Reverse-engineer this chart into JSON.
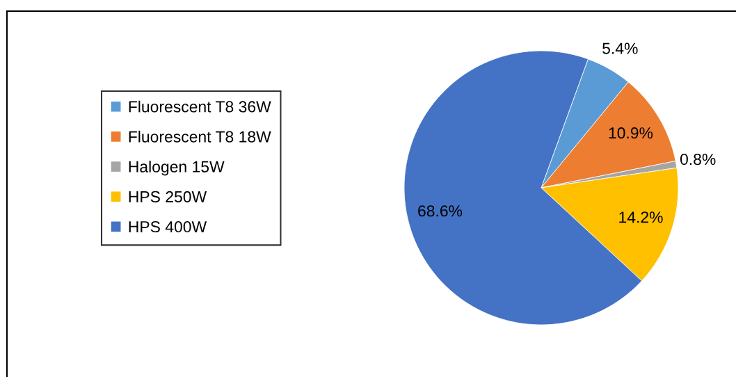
{
  "chart_data": {
    "type": "pie",
    "categories": [
      "Fluorescent T8 36W",
      "Fluorescent T8 18W",
      "Halogen 15W",
      "HPS 250W",
      "HPS 400W"
    ],
    "values": [
      5.4,
      10.9,
      0.8,
      14.2,
      68.6
    ],
    "colors": [
      "#5b9bd5",
      "#ed7d31",
      "#a5a5a5",
      "#ffc000",
      "#4472c4"
    ],
    "value_labels": [
      "5.4%",
      "10.9%",
      "0.8%",
      "14.2%",
      "68.6%"
    ],
    "legend": "left"
  }
}
